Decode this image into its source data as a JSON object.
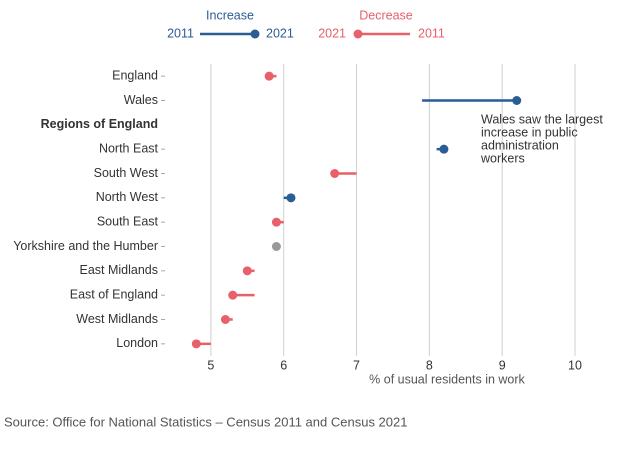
{
  "chart_data": {
    "type": "dumbbell",
    "legend": {
      "increase": "Increase",
      "decrease": "Decrease"
    },
    "increase_color": "#2a5d94",
    "decrease_color": "#e8606a",
    "no_change_color": "#999999",
    "categories": [
      "England",
      "Wales",
      "Regions of England",
      "North East",
      "South West",
      "North West",
      "South East",
      "Yorkshire and the Humber",
      "East Midlands",
      "East of England",
      "West Midlands",
      "London"
    ],
    "series": [
      {
        "name": "2011",
        "values": [
          5.9,
          7.9,
          null,
          8.1,
          7.0,
          6.0,
          6.0,
          5.9,
          5.6,
          5.6,
          5.3,
          5.0
        ]
      },
      {
        "name": "2021",
        "values": [
          5.8,
          9.2,
          null,
          8.2,
          6.7,
          6.1,
          5.9,
          5.9,
          5.5,
          5.3,
          5.2,
          4.8
        ]
      }
    ],
    "xlim": [
      4.37,
      10
    ],
    "xticks": [
      5,
      6,
      7,
      8,
      9,
      10
    ],
    "grid": true,
    "xlabel": "% of usual residents in work",
    "annotation": [
      "Wales saw the largest",
      "increase in public",
      "administration",
      "workers"
    ],
    "source": "Source: Office for National Statistics – Census 2011 and Census 2021"
  }
}
